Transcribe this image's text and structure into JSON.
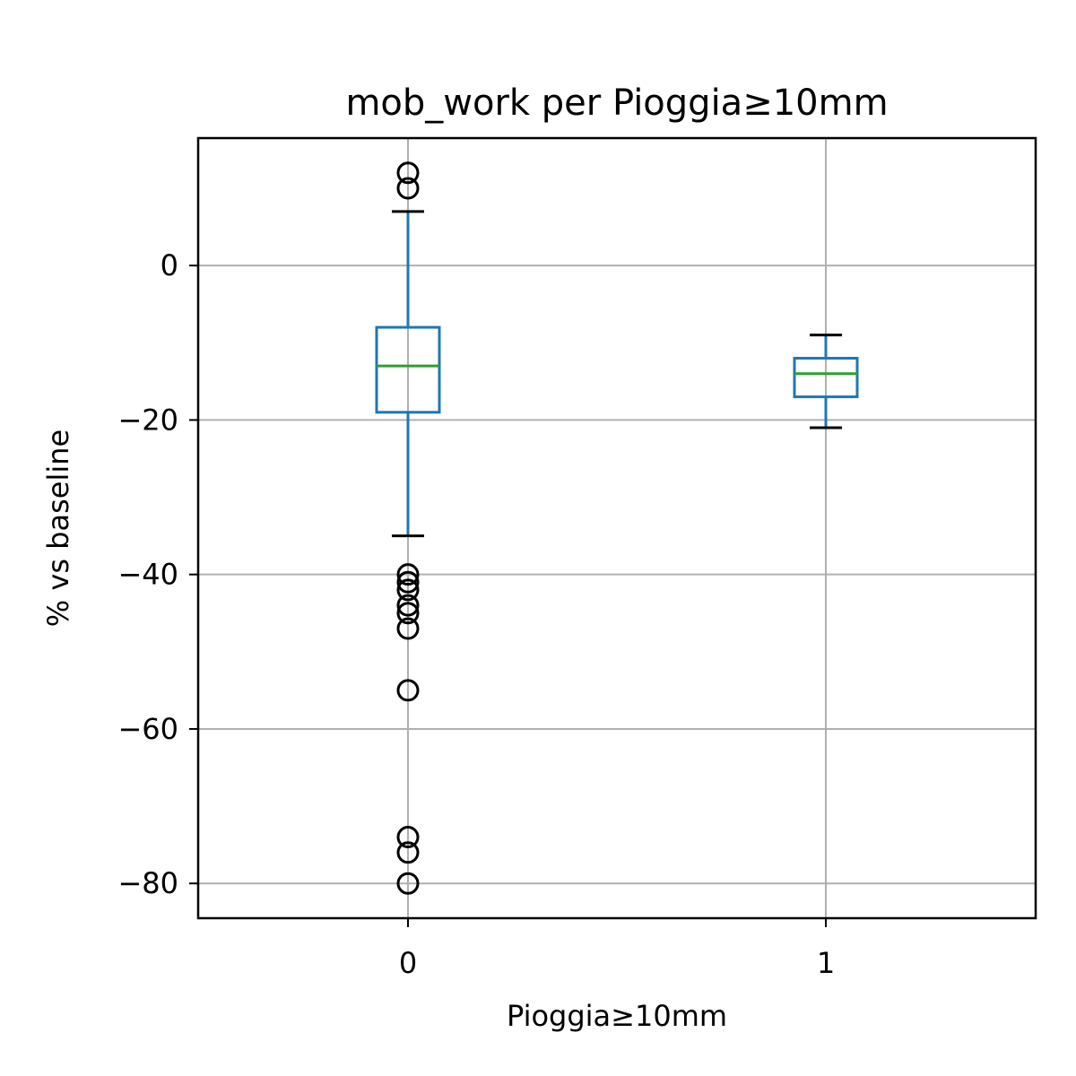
{
  "chart_data": {
    "type": "box",
    "title": "mob_work per Pioggia≥10mm",
    "xlabel": "Pioggia≥10mm",
    "ylabel": "% vs baseline",
    "categories": [
      "0",
      "1"
    ],
    "ylim": [
      -84.5,
      16.5
    ],
    "yticks": [
      0,
      -20,
      -40,
      -60,
      -80
    ],
    "ytick_labels": [
      "0",
      "−20",
      "−40",
      "−60",
      "−80"
    ],
    "grid": true,
    "boxes": [
      {
        "category": "0",
        "whisker_low": -35,
        "q1": -19,
        "median": -13,
        "q3": -8,
        "whisker_high": 7,
        "outliers": [
          12,
          10,
          -40,
          -41,
          -42,
          -44,
          -45,
          -47,
          -55,
          -74,
          -76,
          -80
        ]
      },
      {
        "category": "1",
        "whisker_low": -21,
        "q1": -17,
        "median": -14,
        "q3": -12,
        "whisker_high": -9,
        "outliers": []
      }
    ],
    "colors": {
      "box": "#1f77b4",
      "median": "#2ca02c",
      "caps": "#000000",
      "outliers": "#000000",
      "grid": "#b0b0b0"
    }
  }
}
